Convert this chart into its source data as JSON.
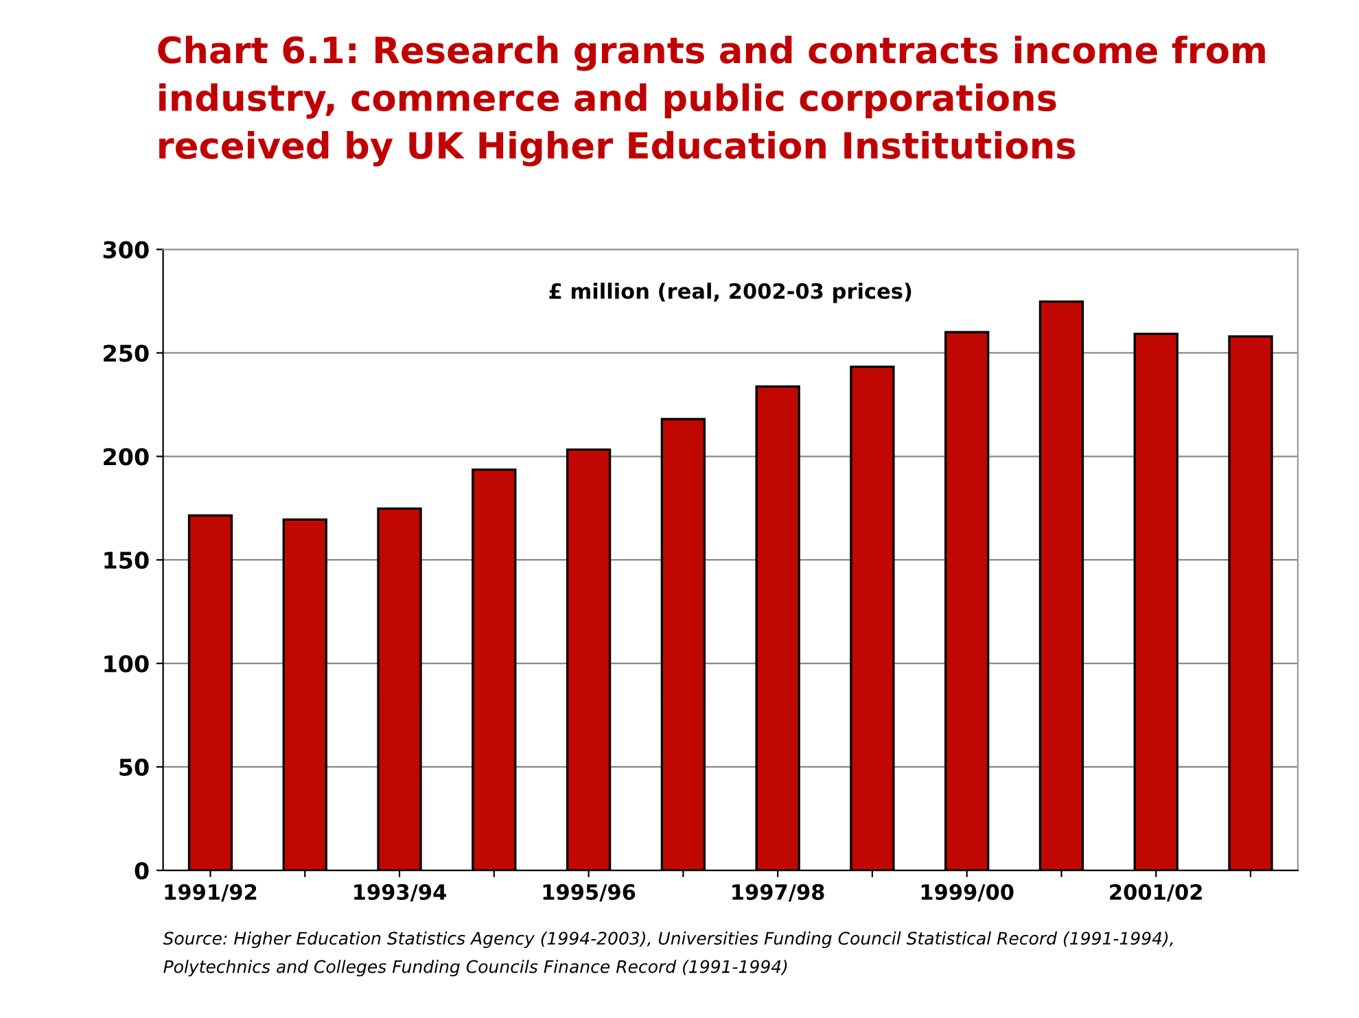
{
  "chart_data": {
    "type": "bar",
    "title": "Chart 6.1: Research grants and contracts income from\nindustry, commerce and public corporations\nreceived by UK Higher Education Institutions",
    "ylabel": "£ million (real, 2002-03 prices)",
    "categories": [
      "1991/92",
      null,
      "1993/94",
      null,
      "1995/96",
      null,
      "1997/98",
      null,
      "1999/00",
      null,
      "2001/02",
      null
    ],
    "values": [
      171.5,
      169.5,
      174.8,
      193.6,
      203.3,
      218,
      233.8,
      243.3,
      260,
      274.8,
      259.2,
      258
    ],
    "color": "#c00800",
    "ylim": [
      0,
      300
    ],
    "yticks": [
      0,
      50,
      100,
      150,
      200,
      250,
      300
    ],
    "grid": "y",
    "legend": false,
    "annotations": [
      "Source: Higher Education Statistics Agency (1994-2003), Universities Funding Council Statistical Record (1991-1994),\nPolytechnics and Colleges Funding Councils Finance Record (1991-1994)"
    ]
  }
}
